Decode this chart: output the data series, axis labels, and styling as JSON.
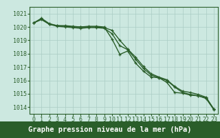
{
  "hours": [
    0,
    1,
    2,
    3,
    4,
    5,
    6,
    7,
    8,
    9,
    10,
    11,
    12,
    13,
    14,
    15,
    16,
    17,
    18,
    19,
    20,
    21,
    22,
    23
  ],
  "line1": [
    1020.3,
    1020.65,
    1020.25,
    1020.1,
    1020.05,
    1020.0,
    1020.0,
    1020.05,
    1020.05,
    1020.0,
    1019.1,
    1017.95,
    1018.2,
    1017.3,
    1016.7,
    1016.25,
    1016.2,
    1015.85,
    1015.1,
    1015.05,
    1014.9,
    1014.85,
    1014.7,
    1013.85
  ],
  "line2": [
    1020.3,
    1020.6,
    1020.2,
    1020.1,
    1020.1,
    1020.05,
    1020.0,
    1020.0,
    1020.0,
    1019.95,
    1019.75,
    1019.0,
    1018.35,
    1017.75,
    1017.05,
    1016.5,
    1016.25,
    1016.05,
    1015.55,
    1015.2,
    1015.1,
    1014.95,
    1014.75,
    1013.85
  ],
  "line3": [
    1020.3,
    1020.55,
    1020.2,
    1020.05,
    1020.0,
    1019.95,
    1019.9,
    1019.95,
    1019.95,
    1019.9,
    1019.5,
    1018.6,
    1018.3,
    1017.6,
    1016.9,
    1016.4,
    1016.2,
    1016.0,
    1015.5,
    1015.1,
    1014.95,
    1014.85,
    1014.65,
    1013.8
  ],
  "ylim_min": 1013.5,
  "ylim_max": 1021.5,
  "yticks": [
    1014,
    1015,
    1016,
    1017,
    1018,
    1019,
    1020,
    1021
  ],
  "bg_color": "#cce8e0",
  "plot_bg_color": "#cce8e0",
  "line_color": "#2a5e2a",
  "grid_color": "#aaccc4",
  "bottom_bar_color": "#2a5e2a",
  "xlabel": "Graphe pression niveau de la mer (hPa)",
  "marker": "+",
  "linewidth": 1.0,
  "fontsize_xlabel": 7.5,
  "tick_fontsize": 6.0,
  "label_color": "#2a5e2a"
}
